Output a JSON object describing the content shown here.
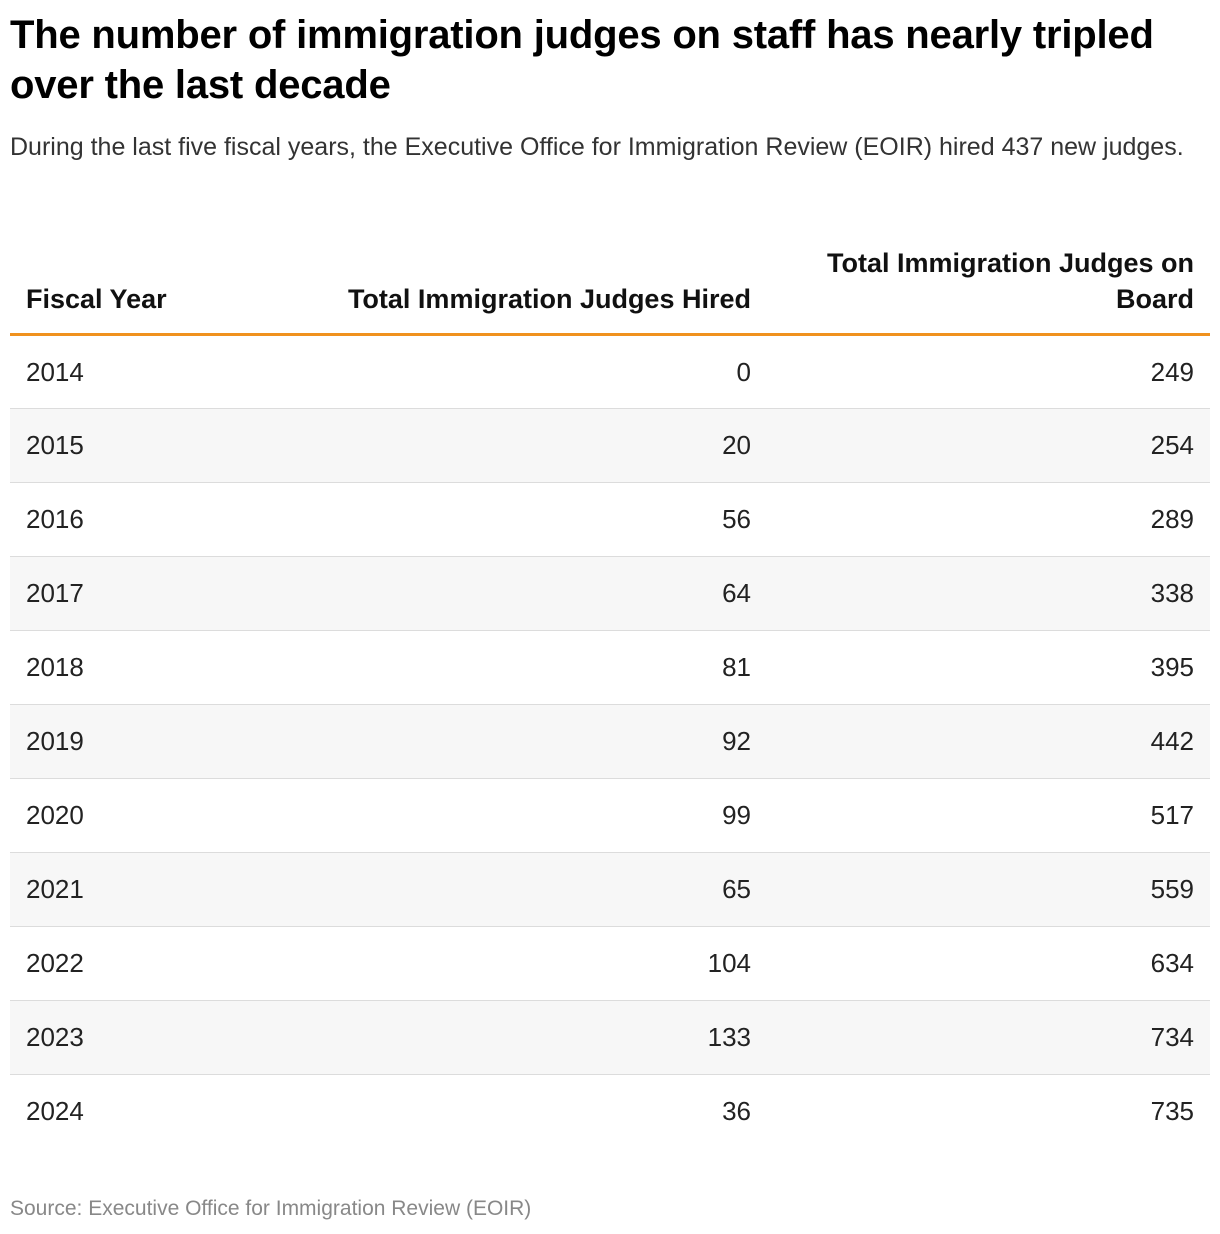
{
  "title": "The number of immigration judges on staff has nearly tripled over the last decade",
  "subtitle": "During the last five fiscal years, the Executive Office for Immigration Review (EOIR) hired 437 new judges.",
  "source": "Source: Executive Office for Immigration Review (EOIR)",
  "colors": {
    "header_rule": "#f0921e",
    "row_stripe": "#f7f7f7",
    "row_divider": "#dcdcdc"
  },
  "chart_data": {
    "type": "table",
    "columns": [
      "Fiscal Year",
      "Total Immigration Judges Hired",
      "Total Immigration Judges on Board"
    ],
    "rows": [
      [
        "2014",
        "0",
        "249"
      ],
      [
        "2015",
        "20",
        "254"
      ],
      [
        "2016",
        "56",
        "289"
      ],
      [
        "2017",
        "64",
        "338"
      ],
      [
        "2018",
        "81",
        "395"
      ],
      [
        "2019",
        "92",
        "442"
      ],
      [
        "2020",
        "99",
        "517"
      ],
      [
        "2021",
        "65",
        "559"
      ],
      [
        "2022",
        "104",
        "634"
      ],
      [
        "2023",
        "133",
        "734"
      ],
      [
        "2024",
        "36",
        "735"
      ]
    ]
  }
}
